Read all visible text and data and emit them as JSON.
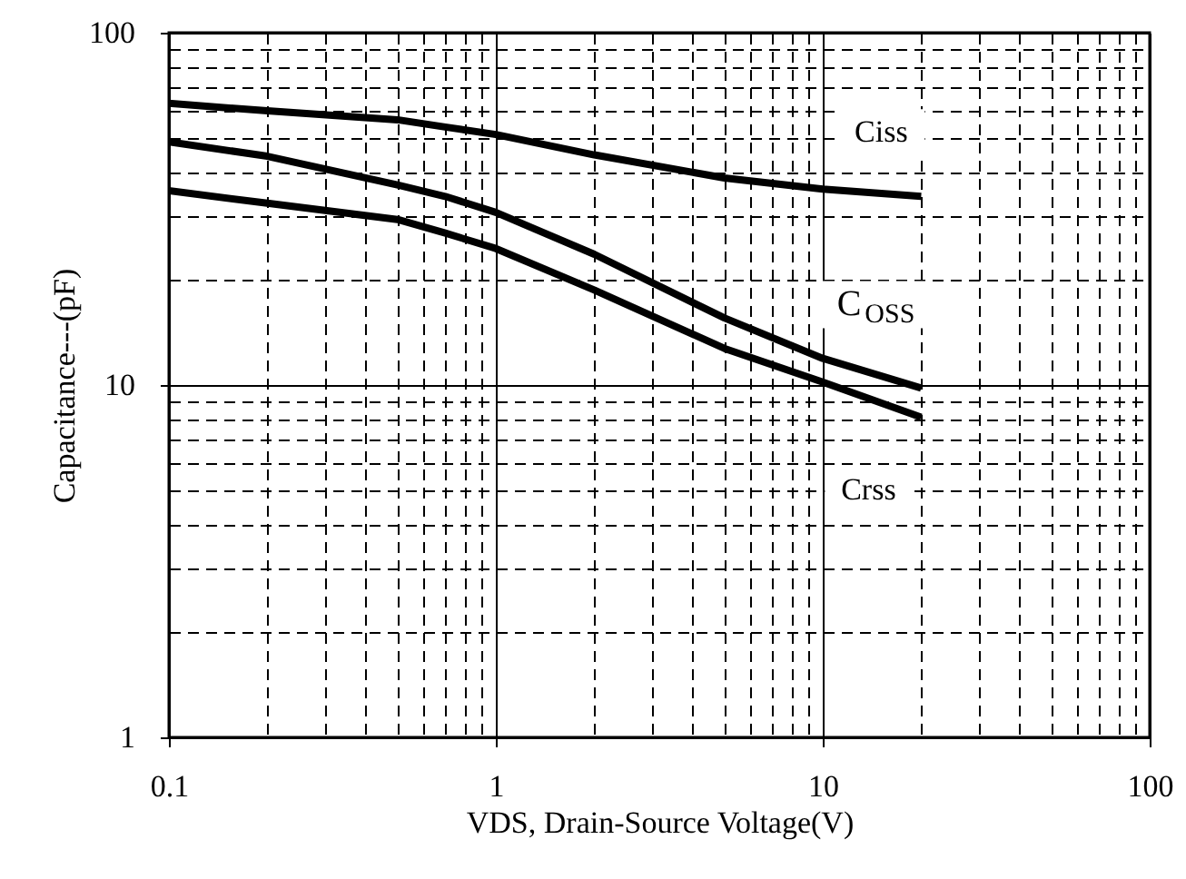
{
  "chart_data": {
    "type": "line",
    "xlabel": "VDS, Drain-Source Voltage(V)",
    "ylabel": "Capacitance---(pF)",
    "log": "xy",
    "grid": true,
    "line_style": "solid",
    "marker": "none",
    "xlim": [
      0.1,
      100
    ],
    "ylim": [
      1,
      100
    ],
    "xticks": [
      0.1,
      {
        "value": 0.2,
        "label": null
      },
      {
        "value": 0.3,
        "label": null
      },
      {
        "value": 0.4,
        "label": null
      },
      {
        "value": 0.5,
        "label": null
      },
      {
        "value": 0.6,
        "label": null
      },
      {
        "value": 0.7,
        "label": null
      },
      {
        "value": 0.8,
        "label": null
      },
      {
        "value": 0.9,
        "label": null
      },
      1,
      {
        "value": 2,
        "label": null
      },
      {
        "value": 3,
        "label": null
      },
      {
        "value": 4,
        "label": null
      },
      {
        "value": 5,
        "label": null
      },
      {
        "value": 6,
        "label": null
      },
      {
        "value": 7,
        "label": null
      },
      {
        "value": 8,
        "label": null
      },
      {
        "value": 9,
        "label": null
      },
      10,
      {
        "value": 20,
        "label": null
      },
      {
        "value": 30,
        "label": null
      },
      {
        "value": 40,
        "label": null
      },
      {
        "value": 50,
        "label": null
      },
      {
        "value": 60,
        "label": null
      },
      {
        "value": 70,
        "label": null
      },
      {
        "value": 80,
        "label": null
      },
      {
        "value": 90,
        "label": null
      },
      100
    ],
    "yticks": [
      1,
      {
        "value": 2,
        "label": null
      },
      {
        "value": 3,
        "label": null
      },
      {
        "value": 4,
        "label": null
      },
      {
        "value": 5,
        "label": null
      },
      {
        "value": 6,
        "label": null
      },
      {
        "value": 7,
        "label": null
      },
      {
        "value": 8,
        "label": null
      },
      {
        "value": 9,
        "label": null
      },
      10,
      {
        "value": 20,
        "label": null
      },
      {
        "value": 30,
        "label": null
      },
      {
        "value": 40,
        "label": null
      },
      {
        "value": 50,
        "label": null
      },
      {
        "value": 60,
        "label": null
      },
      {
        "value": 70,
        "label": null
      },
      {
        "value": 80,
        "label": null
      },
      {
        "value": 90,
        "label": null
      },
      100
    ],
    "x": [
      0.1,
      0.2,
      0.5,
      0.7,
      1,
      2,
      5,
      10,
      20
    ],
    "series": [
      {
        "name": "Ciss",
        "color": "#000000",
        "values": [
          63,
          60,
          56.6,
          54,
          51.4,
          45,
          38.7,
          36,
          34.3
        ]
      },
      {
        "name": "C$_{OSS}$",
        "color": "#000000",
        "values": [
          49,
          44.6,
          37,
          34.3,
          30.9,
          23.5,
          15.5,
          11.9,
          9.8
        ]
      },
      {
        "name": "Crss",
        "color": "#000000",
        "values": [
          35.6,
          32.8,
          29.5,
          27,
          24.4,
          18.6,
          12.7,
          10.2,
          8.1
        ]
      }
    ]
  }
}
